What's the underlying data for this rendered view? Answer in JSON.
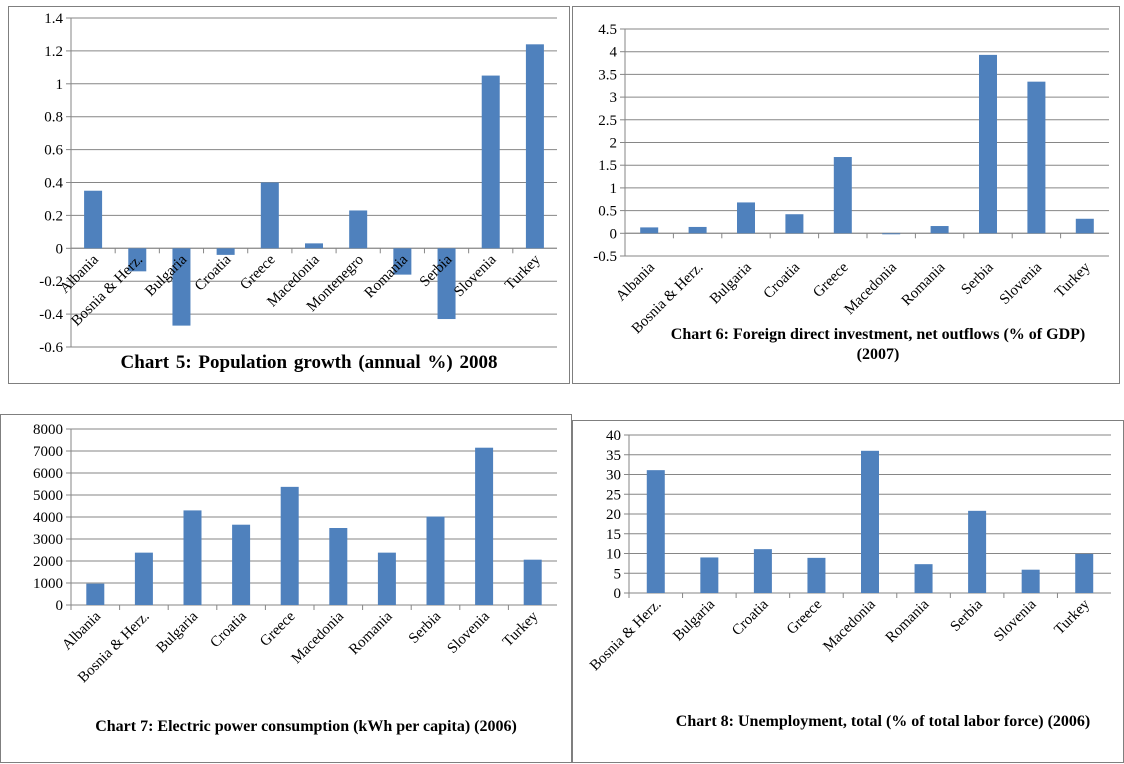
{
  "colors": {
    "bar": "#4f81bd",
    "axis": "#868686",
    "grid": "#868686"
  },
  "chart_data": [
    {
      "type": "bar",
      "title": "Chart 5: Population growth  (annual  %) 2008",
      "categories": [
        "Albania",
        "Bosnia & Herz.",
        "Bulgaria",
        "Croatia",
        "Greece",
        "Macedonia",
        "Montenegro",
        "Romania",
        "Serbia",
        "Slovenia",
        "Turkey"
      ],
      "values": [
        0.35,
        -0.14,
        -0.47,
        -0.04,
        0.4,
        0.03,
        0.23,
        -0.16,
        -0.43,
        1.05,
        1.24
      ],
      "ylim": [
        -0.6,
        1.4
      ],
      "yticks": [
        "-0.6",
        "-0.4",
        "-0.2",
        "0",
        "0.2",
        "0.4",
        "0.6",
        "0.8",
        "1",
        "1.2",
        "1.4"
      ],
      "grid": true,
      "xlabel": "",
      "ylabel": ""
    },
    {
      "type": "bar",
      "title": "Chart 6: Foreign direct investment, net outflows (% of GDP) (2007)",
      "categories": [
        "Albania",
        "Bosnia & Herz.",
        "Bulgaria",
        "Croatia",
        "Greece",
        "Macedonia",
        "Romania",
        "Serbia",
        "Slovenia",
        "Turkey"
      ],
      "values": [
        0.13,
        0.14,
        0.68,
        0.42,
        1.68,
        -0.02,
        0.16,
        3.93,
        3.34,
        0.32
      ],
      "ylim": [
        -0.5,
        4.5
      ],
      "yticks": [
        "-0.5",
        "0",
        "0.5",
        "1",
        "1.5",
        "2",
        "2.5",
        "3",
        "3.5",
        "4",
        "4.5"
      ],
      "grid": true,
      "xlabel": "",
      "ylabel": ""
    },
    {
      "type": "bar",
      "title": "Chart 7: Electric power consumption (kWh per capita) (2006)",
      "categories": [
        "Albania",
        "Bosnia & Herz.",
        "Bulgaria",
        "Croatia",
        "Greece",
        "Macedonia",
        "Romania",
        "Serbia",
        "Slovenia",
        "Turkey"
      ],
      "values": [
        970,
        2380,
        4300,
        3650,
        5370,
        3500,
        2380,
        4020,
        7150,
        2060
      ],
      "ylim": [
        0,
        8000
      ],
      "yticks": [
        "0",
        "1000",
        "2000",
        "3000",
        "4000",
        "5000",
        "6000",
        "7000",
        "8000"
      ],
      "grid": true,
      "xlabel": "",
      "ylabel": ""
    },
    {
      "type": "bar",
      "title": "Chart 8: Unemployment, total (% of total labor force) (2006)",
      "categories": [
        "Bosnia & Herz.",
        "Bulgaria",
        "Croatia",
        "Greece",
        "Macedonia",
        "Romania",
        "Serbia",
        "Slovenia",
        "Turkey"
      ],
      "values": [
        31.1,
        9.0,
        11.1,
        8.9,
        36.0,
        7.3,
        20.8,
        5.9,
        9.9
      ],
      "ylim": [
        0,
        40
      ],
      "yticks": [
        "0",
        "5",
        "10",
        "15",
        "20",
        "25",
        "30",
        "35",
        "40"
      ],
      "grid": true,
      "xlabel": "",
      "ylabel": ""
    }
  ]
}
